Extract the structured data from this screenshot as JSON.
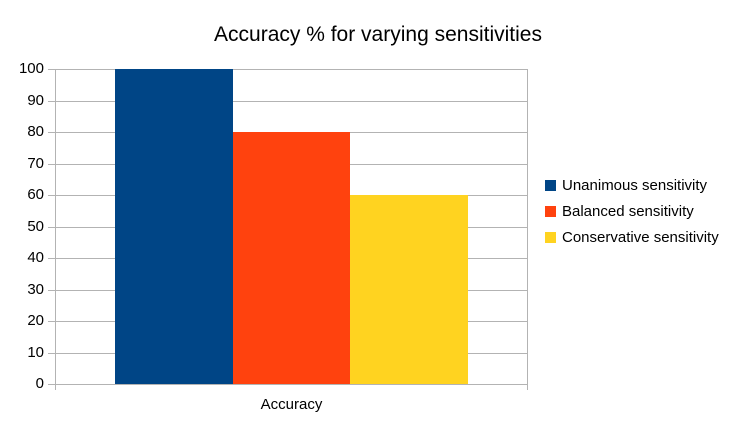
{
  "chart_data": {
    "type": "bar",
    "title": "Accuracy % for varying sensitivities",
    "categories": [
      "Accuracy"
    ],
    "series": [
      {
        "name": "Unanimous sensitivity",
        "values": [
          100
        ],
        "color": "#004586"
      },
      {
        "name": "Balanced sensitivity",
        "values": [
          80
        ],
        "color": "#FF420E"
      },
      {
        "name": "Conservative sensitivity",
        "values": [
          60
        ],
        "color": "#FFD320"
      }
    ],
    "ylim": [
      0,
      100
    ],
    "ytick_step": 10,
    "ytick_labels": [
      "0",
      "10",
      "20",
      "30",
      "40",
      "50",
      "60",
      "70",
      "80",
      "90",
      "100"
    ],
    "grid": true,
    "legend_position": "right"
  },
  "colors": {
    "background": "#FFFFFF",
    "axis": "#B3B3B3",
    "grid": "#B3B3B3",
    "text": "#000000"
  }
}
